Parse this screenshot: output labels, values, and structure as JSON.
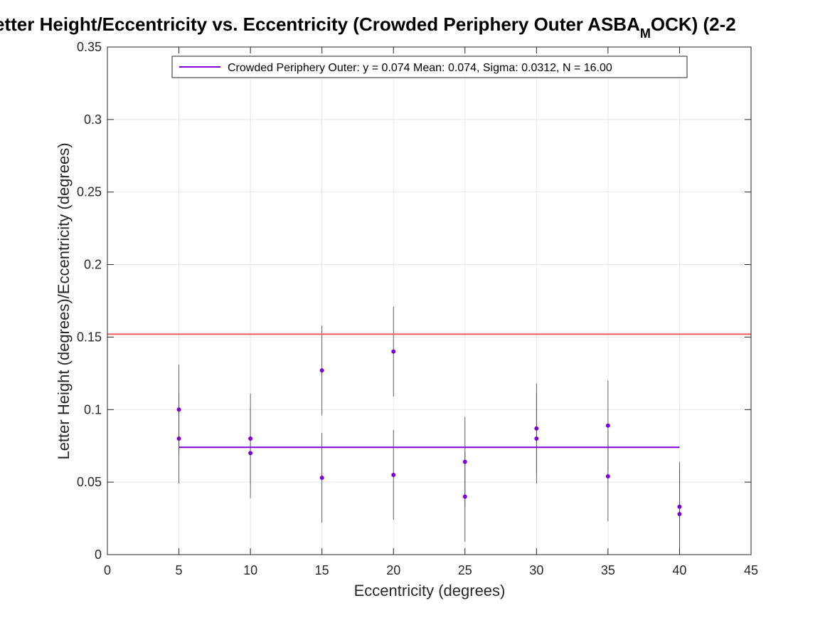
{
  "chart_data": {
    "type": "scatter",
    "title": {
      "main": "etter Height/Eccentricity vs. Eccentricity (Crowded Periphery Outer ASBA",
      "subscript": "M",
      "tail": "OCK) (2-2"
    },
    "xlabel": "Eccentricity (degrees)",
    "ylabel": "Letter Height (degrees)/Eccentricity (degrees)",
    "xlim": [
      0,
      45
    ],
    "ylim": [
      0,
      0.35
    ],
    "xticks": [
      0,
      5,
      10,
      15,
      20,
      25,
      30,
      35,
      40,
      45
    ],
    "xtick_labels": [
      "0",
      "5",
      "10",
      "15",
      "20",
      "25",
      "30",
      "35",
      "40",
      "45"
    ],
    "yticks": [
      0,
      0.05,
      0.1,
      0.15,
      0.2,
      0.25,
      0.3,
      0.35
    ],
    "ytick_labels": [
      "0",
      "0.05",
      "0.1",
      "0.15",
      "0.2",
      "0.25",
      "0.3",
      "0.35"
    ],
    "grid": true,
    "legend_position": "top",
    "points": [
      {
        "x": 5,
        "y": 0.1,
        "err": 0.031
      },
      {
        "x": 5,
        "y": 0.08,
        "err": 0.031
      },
      {
        "x": 10,
        "y": 0.08,
        "err": 0.031
      },
      {
        "x": 10,
        "y": 0.07,
        "err": 0.031
      },
      {
        "x": 15,
        "y": 0.127,
        "err": 0.031
      },
      {
        "x": 15,
        "y": 0.053,
        "err": 0.031
      },
      {
        "x": 20,
        "y": 0.14,
        "err": 0.031
      },
      {
        "x": 20,
        "y": 0.055,
        "err": 0.031
      },
      {
        "x": 25,
        "y": 0.064,
        "err": 0.031
      },
      {
        "x": 25,
        "y": 0.04,
        "err": 0.031
      },
      {
        "x": 30,
        "y": 0.087,
        "err": 0.031
      },
      {
        "x": 30,
        "y": 0.08,
        "err": 0.031
      },
      {
        "x": 35,
        "y": 0.089,
        "err": 0.031
      },
      {
        "x": 35,
        "y": 0.054,
        "err": 0.031
      },
      {
        "x": 40,
        "y": 0.033,
        "err": 0.031
      },
      {
        "x": 40,
        "y": 0.028,
        "err": 0.031
      }
    ],
    "fit_line": {
      "label": "Crowded Periphery Outer: y = 0.074 Mean: 0.074, Sigma: 0.0312, N = 16.00",
      "y": 0.074,
      "x_start": 5,
      "x_end": 40
    },
    "reference_line": {
      "y": 0.152
    },
    "colors": {
      "points": "#7e00d6",
      "fit_line": "#7e00d6",
      "reference_line": "#ff5a5a",
      "error_bars": "#404040",
      "grid": "#e6e6e6",
      "axes": "#262626"
    }
  }
}
